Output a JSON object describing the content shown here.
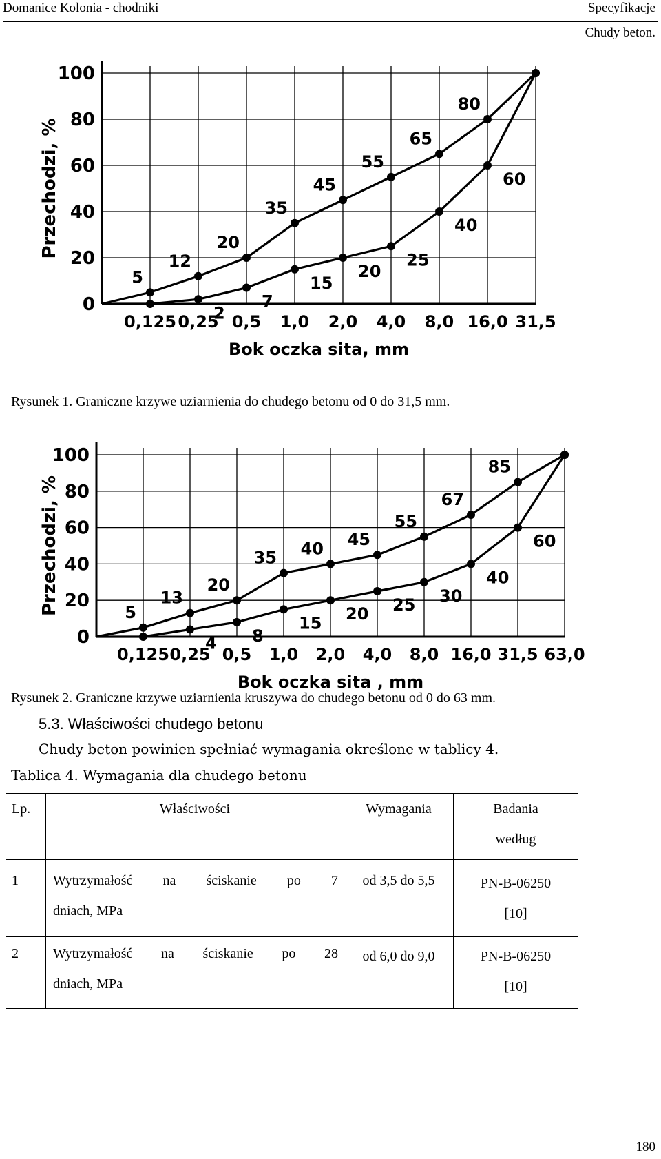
{
  "header": {
    "left": "Domanice Kolonia - chodniki",
    "right_line1": "Specyfikacje",
    "right_line2": "Chudy beton.",
    "page_number": "180"
  },
  "chart_data": [
    {
      "type": "line",
      "title": "",
      "xlabel": "Bok oczka sita, mm",
      "ylabel": "Przechodzi, %",
      "ylim": [
        0,
        100
      ],
      "yticks": [
        "0",
        "20",
        "40",
        "60",
        "80",
        "100"
      ],
      "categories": [
        "0",
        "0,125",
        "0,25",
        "0,5",
        "1,0",
        "2,0",
        "4,0",
        "8,0",
        "16,0",
        "31,5"
      ],
      "grid": true,
      "series": [
        {
          "values": [
            0,
            5,
            12,
            20,
            35,
            45,
            55,
            65,
            80,
            100
          ],
          "labels": [
            "",
            "5",
            "12",
            "20",
            "35",
            "45",
            "55",
            "65",
            "80",
            ""
          ]
        },
        {
          "values": [
            0,
            0,
            2,
            7,
            15,
            20,
            25,
            40,
            60,
            100
          ],
          "labels": [
            "",
            "",
            "2",
            "7",
            "15",
            "20",
            "25",
            "40",
            "60",
            ""
          ]
        }
      ]
    },
    {
      "type": "line",
      "title": "",
      "xlabel": "Bok oczka sita , mm",
      "ylabel": "Przechodzi, %",
      "ylim": [
        0,
        100
      ],
      "yticks": [
        "0",
        "20",
        "40",
        "60",
        "80",
        "100"
      ],
      "categories": [
        "0",
        "0,125",
        "0,25",
        "0,5",
        "1,0",
        "2,0",
        "4,0",
        "8,0",
        "16,0",
        "31,5",
        "63,0"
      ],
      "grid": true,
      "series": [
        {
          "values": [
            0,
            5,
            13,
            20,
            35,
            40,
            45,
            55,
            67,
            85,
            100
          ],
          "labels": [
            "",
            "5",
            "13",
            "20",
            "35",
            "40",
            "45",
            "55",
            "67",
            "85",
            ""
          ]
        },
        {
          "values": [
            0,
            0,
            4,
            8,
            15,
            20,
            25,
            30,
            40,
            60,
            100
          ],
          "labels": [
            "",
            "",
            "4",
            "8",
            "15",
            "20",
            "25",
            "30",
            "40",
            "60",
            ""
          ]
        }
      ]
    }
  ],
  "captions": {
    "fig1": "Rysunek 1. Graniczne krzywe uziarnienia do chudego betonu od 0 do 31,5 mm.",
    "fig2": "Rysunek 2. Graniczne krzywe uziarnienia kruszywa do chudego betonu od 0 do 63 mm."
  },
  "section": {
    "title": "5.3. Właściwości chudego betonu",
    "paragraph": "Chudy beton powinien spełniać wymagania określone w tablicy 4."
  },
  "table": {
    "caption": "Tablica 4. Wymagania dla chudego betonu",
    "headers": {
      "lp": "Lp.",
      "prop": "Właściwości",
      "req": "Wymagania",
      "bad_line1": "Badania",
      "bad_line2": "według"
    },
    "rows": [
      {
        "lp": "1",
        "prop_words": [
          "Wytrzymałość",
          "na",
          "ściskanie",
          "po",
          "7"
        ],
        "prop_line2": "dniach, MPa",
        "req": "od 3,5 do 5,5",
        "bad_line1": "PN-B-06250",
        "bad_line2": "[10]"
      },
      {
        "lp": "2",
        "prop_words": [
          "Wytrzymałość",
          "na",
          "ściskanie",
          "po",
          "28"
        ],
        "prop_line2": "dniach, MPa",
        "req": "od 6,0 do 9,0",
        "bad_line1": "PN-B-06250",
        "bad_line2": "[10]"
      }
    ]
  }
}
